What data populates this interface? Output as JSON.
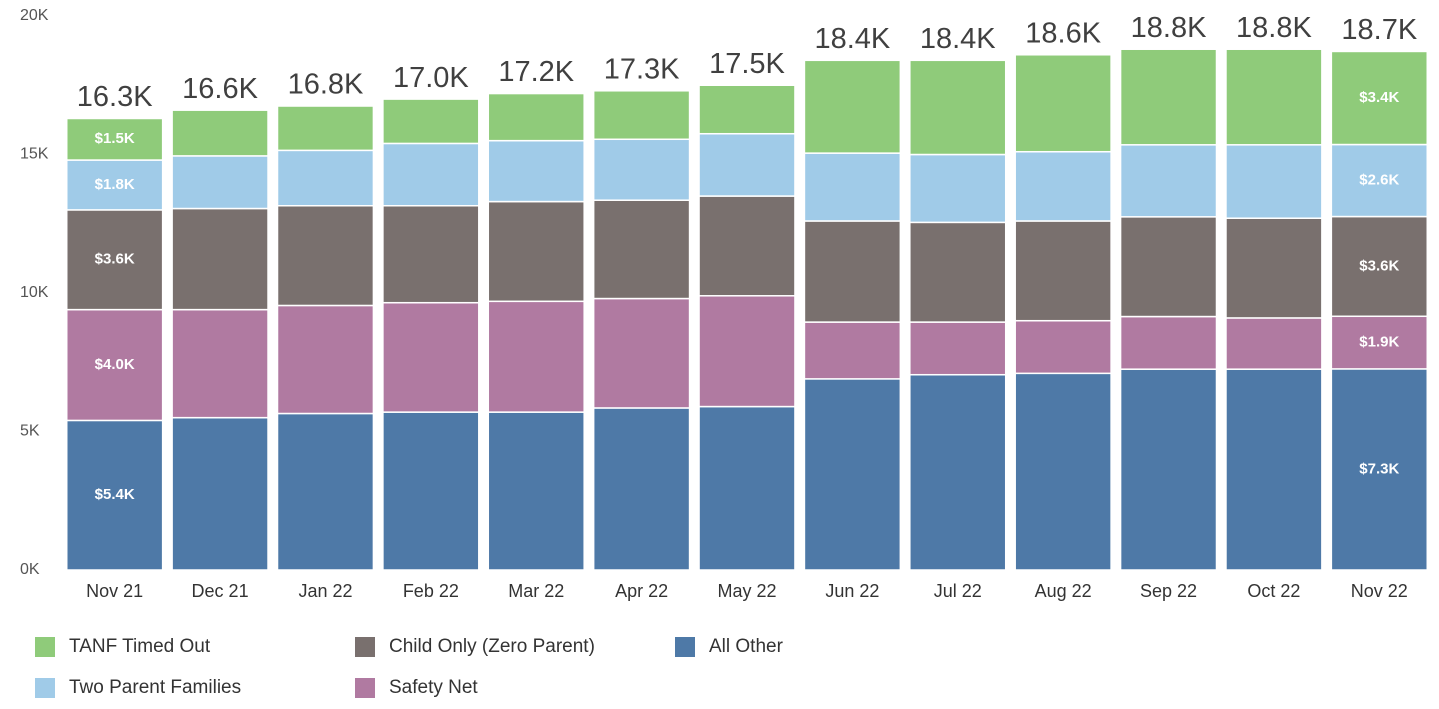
{
  "chart_data": {
    "type": "stacked_bar",
    "categories": [
      "Nov 21",
      "Dec 21",
      "Jan 22",
      "Feb 22",
      "Mar 22",
      "Apr 22",
      "May 22",
      "Jun 22",
      "Jul 22",
      "Aug 22",
      "Sep 22",
      "Oct 22",
      "Nov 22"
    ],
    "series": [
      {
        "name": "All Other",
        "color": "#4e79a7",
        "values": [
          5400,
          5500,
          5650,
          5700,
          5700,
          5850,
          5900,
          6900,
          7050,
          7100,
          7250,
          7250,
          7260
        ],
        "value_labels": [
          "$5.4K",
          null,
          null,
          null,
          null,
          null,
          null,
          null,
          null,
          null,
          null,
          null,
          "$7.3K"
        ]
      },
      {
        "name": "Safety Net",
        "color": "#b07aa1",
        "values": [
          4000,
          3900,
          3900,
          3950,
          4000,
          3950,
          4000,
          2050,
          1900,
          1900,
          1900,
          1850,
          1900
        ],
        "value_labels": [
          "$4.0K",
          null,
          null,
          null,
          null,
          null,
          null,
          null,
          null,
          null,
          null,
          null,
          "$1.9K"
        ]
      },
      {
        "name": "Child Only (Zero Parent)",
        "color": "#79706e",
        "values": [
          3600,
          3650,
          3600,
          3500,
          3600,
          3550,
          3600,
          3650,
          3600,
          3600,
          3600,
          3600,
          3600
        ],
        "value_labels": [
          "$3.6K",
          null,
          null,
          null,
          null,
          null,
          null,
          null,
          null,
          null,
          null,
          null,
          "$3.6K"
        ]
      },
      {
        "name": "Two Parent Families",
        "color": "#a0cbe8",
        "values": [
          1800,
          1900,
          2000,
          2250,
          2200,
          2200,
          2250,
          2450,
          2450,
          2500,
          2600,
          2650,
          2600
        ],
        "value_labels": [
          "$1.8K",
          null,
          null,
          null,
          null,
          null,
          null,
          null,
          null,
          null,
          null,
          null,
          "$2.6K"
        ]
      },
      {
        "name": "TANF Timed Out",
        "color": "#8fcb7a",
        "values": [
          1500,
          1650,
          1600,
          1600,
          1700,
          1750,
          1750,
          3350,
          3400,
          3500,
          3450,
          3450,
          3360
        ],
        "value_labels": [
          "$1.5K",
          null,
          null,
          null,
          null,
          null,
          null,
          null,
          null,
          null,
          null,
          null,
          "$3.4K"
        ]
      }
    ],
    "totals": [
      16300,
      16600,
      16800,
      17000,
      17200,
      17300,
      17500,
      18400,
      18400,
      18600,
      18800,
      18800,
      18700
    ],
    "total_labels": [
      "16.3K",
      "16.6K",
      "16.8K",
      "17.0K",
      "17.2K",
      "17.3K",
      "17.5K",
      "18.4K",
      "18.4K",
      "18.6K",
      "18.8K",
      "18.8K",
      "18.7K"
    ],
    "ylim": [
      0,
      20000
    ],
    "yticks": [
      {
        "value": 0,
        "label": "0K"
      },
      {
        "value": 5000,
        "label": "5K"
      },
      {
        "value": 10000,
        "label": "10K"
      },
      {
        "value": 15000,
        "label": "15K"
      },
      {
        "value": 20000,
        "label": "20K"
      }
    ],
    "grid": false,
    "legend": "bottom"
  }
}
